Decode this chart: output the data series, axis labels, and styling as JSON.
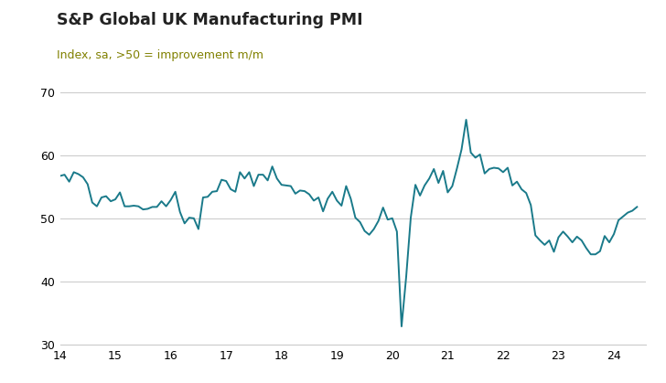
{
  "title": "S&P Global UK Manufacturing PMI",
  "subtitle": "Index, sa, >50 = improvement m/m",
  "title_color": "#222222",
  "subtitle_color": "#808000",
  "line_color": "#1a7a8a",
  "background_color": "#ffffff",
  "ylim": [
    30,
    70
  ],
  "yticks": [
    30,
    40,
    50,
    60,
    70
  ],
  "xlim": [
    14.0,
    24.58
  ],
  "xticks": [
    14,
    15,
    16,
    17,
    18,
    19,
    20,
    21,
    22,
    23,
    24
  ],
  "grid_color": "#cccccc",
  "line_width": 1.4,
  "dates": [
    14.0,
    14.083,
    14.167,
    14.25,
    14.333,
    14.417,
    14.5,
    14.583,
    14.667,
    14.75,
    14.833,
    14.917,
    15.0,
    15.083,
    15.167,
    15.25,
    15.333,
    15.417,
    15.5,
    15.583,
    15.667,
    15.75,
    15.833,
    15.917,
    16.0,
    16.083,
    16.167,
    16.25,
    16.333,
    16.417,
    16.5,
    16.583,
    16.667,
    16.75,
    16.833,
    16.917,
    17.0,
    17.083,
    17.167,
    17.25,
    17.333,
    17.417,
    17.5,
    17.583,
    17.667,
    17.75,
    17.833,
    17.917,
    18.0,
    18.083,
    18.167,
    18.25,
    18.333,
    18.417,
    18.5,
    18.583,
    18.667,
    18.75,
    18.833,
    18.917,
    19.0,
    19.083,
    19.167,
    19.25,
    19.333,
    19.417,
    19.5,
    19.583,
    19.667,
    19.75,
    19.833,
    19.917,
    20.0,
    20.083,
    20.167,
    20.25,
    20.333,
    20.417,
    20.5,
    20.583,
    20.667,
    20.75,
    20.833,
    20.917,
    21.0,
    21.083,
    21.167,
    21.25,
    21.333,
    21.417,
    21.5,
    21.583,
    21.667,
    21.75,
    21.833,
    21.917,
    22.0,
    22.083,
    22.167,
    22.25,
    22.333,
    22.417,
    22.5,
    22.583,
    22.667,
    22.75,
    22.833,
    22.917,
    23.0,
    23.083,
    23.167,
    23.25,
    23.333,
    23.417,
    23.5,
    23.583,
    23.667,
    23.75,
    23.833,
    23.917,
    24.0,
    24.083,
    24.167,
    24.25,
    24.333,
    24.417
  ],
  "values": [
    56.7,
    56.9,
    55.8,
    57.3,
    57.0,
    56.5,
    55.4,
    52.5,
    51.9,
    53.3,
    53.5,
    52.7,
    53.0,
    54.1,
    51.9,
    51.9,
    52.0,
    51.9,
    51.4,
    51.5,
    51.8,
    51.8,
    52.7,
    51.9,
    52.9,
    54.2,
    51.0,
    49.2,
    50.1,
    50.0,
    48.3,
    53.3,
    53.4,
    54.2,
    54.3,
    56.1,
    55.9,
    54.6,
    54.2,
    57.3,
    56.3,
    57.3,
    55.1,
    56.9,
    56.9,
    56.0,
    58.2,
    56.3,
    55.3,
    55.2,
    55.1,
    53.9,
    54.4,
    54.3,
    53.8,
    52.8,
    53.3,
    51.1,
    53.1,
    54.2,
    52.8,
    52.0,
    55.1,
    53.1,
    50.1,
    49.4,
    48.0,
    47.4,
    48.3,
    49.6,
    51.7,
    49.8,
    50.0,
    47.9,
    32.9,
    40.7,
    50.1,
    55.3,
    53.6,
    55.2,
    56.3,
    57.8,
    55.6,
    57.5,
    54.1,
    55.1,
    57.9,
    60.9,
    65.6,
    60.4,
    59.6,
    60.1,
    57.1,
    57.8,
    58.0,
    57.9,
    57.3,
    58.0,
    55.2,
    55.8,
    54.6,
    54.0,
    52.1,
    47.3,
    46.5,
    45.8,
    46.5,
    44.7,
    47.0,
    47.9,
    47.1,
    46.2,
    47.1,
    46.5,
    45.3,
    44.3,
    44.3,
    44.8,
    47.2,
    46.2,
    47.5,
    49.7,
    50.3,
    50.9,
    51.2,
    51.8
  ]
}
